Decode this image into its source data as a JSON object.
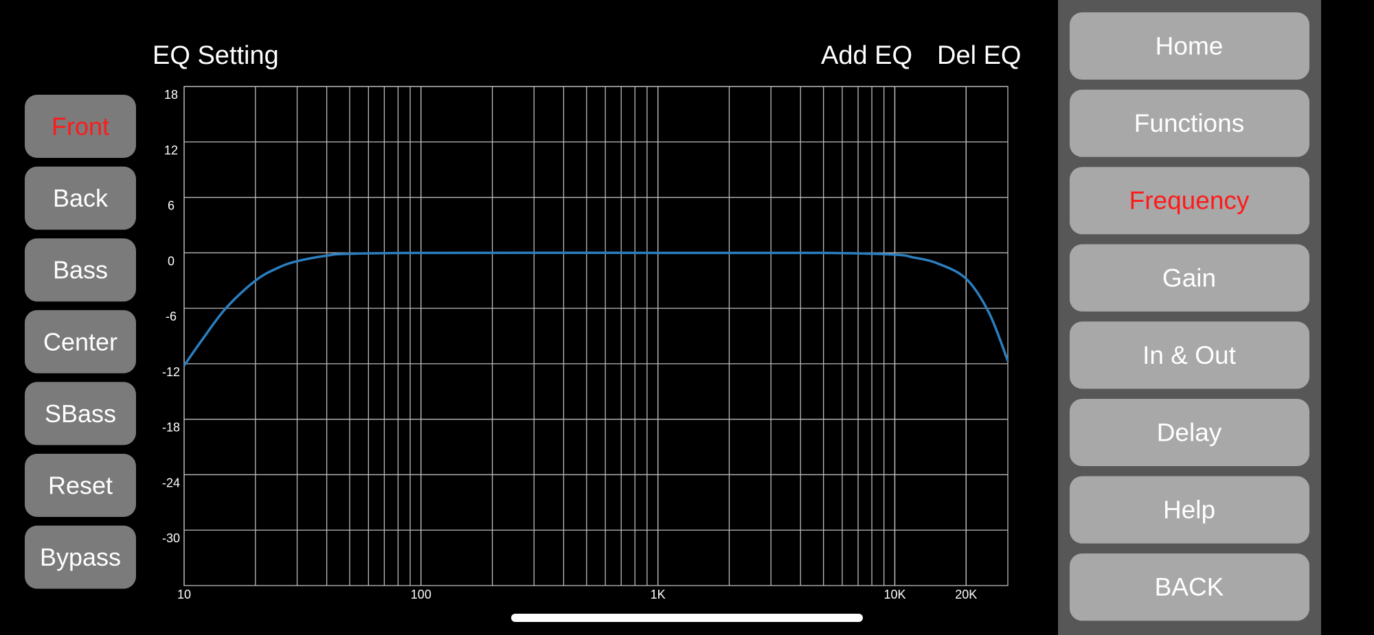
{
  "header": {
    "title": "EQ Setting",
    "add": "Add EQ",
    "delete": "Del EQ"
  },
  "channels": [
    {
      "label": "Front",
      "selected": true
    },
    {
      "label": "Back",
      "selected": false
    },
    {
      "label": "Bass",
      "selected": false
    },
    {
      "label": "Center",
      "selected": false
    },
    {
      "label": "SBass",
      "selected": false
    },
    {
      "label": "Reset",
      "selected": false
    },
    {
      "label": "Bypass",
      "selected": false
    }
  ],
  "nav": [
    {
      "label": "Home",
      "selected": false
    },
    {
      "label": "Functions",
      "selected": false
    },
    {
      "label": "Frequency",
      "selected": true
    },
    {
      "label": "Gain",
      "selected": false
    },
    {
      "label": "In & Out",
      "selected": false
    },
    {
      "label": "Delay",
      "selected": false
    },
    {
      "label": "Help",
      "selected": false
    },
    {
      "label": "BACK",
      "selected": false
    }
  ],
  "chart_data": {
    "type": "line",
    "xscale": "log",
    "grid": true,
    "color": "#2b7fc0",
    "x": [
      10,
      12,
      15,
      20,
      25,
      30,
      40,
      50,
      100,
      1000,
      5000,
      10000,
      12000,
      15000,
      20000,
      25000,
      30000
    ],
    "values": [
      -12.2,
      -9.3,
      -6.0,
      -3.0,
      -1.6,
      -0.9,
      -0.3,
      -0.1,
      0,
      0,
      0,
      -0.2,
      -0.5,
      -1.1,
      -2.8,
      -6.5,
      -11.7
    ],
    "xlim": [
      10,
      30000
    ],
    "xticks": [
      10,
      100,
      {
        "value": 1000,
        "label": "1K"
      },
      {
        "value": 10000,
        "label": "10K"
      },
      {
        "value": 20000,
        "label": "20K"
      }
    ],
    "ylim": [
      -36,
      18
    ],
    "yticks": [
      18,
      12,
      6,
      0,
      -6,
      -12,
      -18,
      -24,
      -30
    ]
  }
}
